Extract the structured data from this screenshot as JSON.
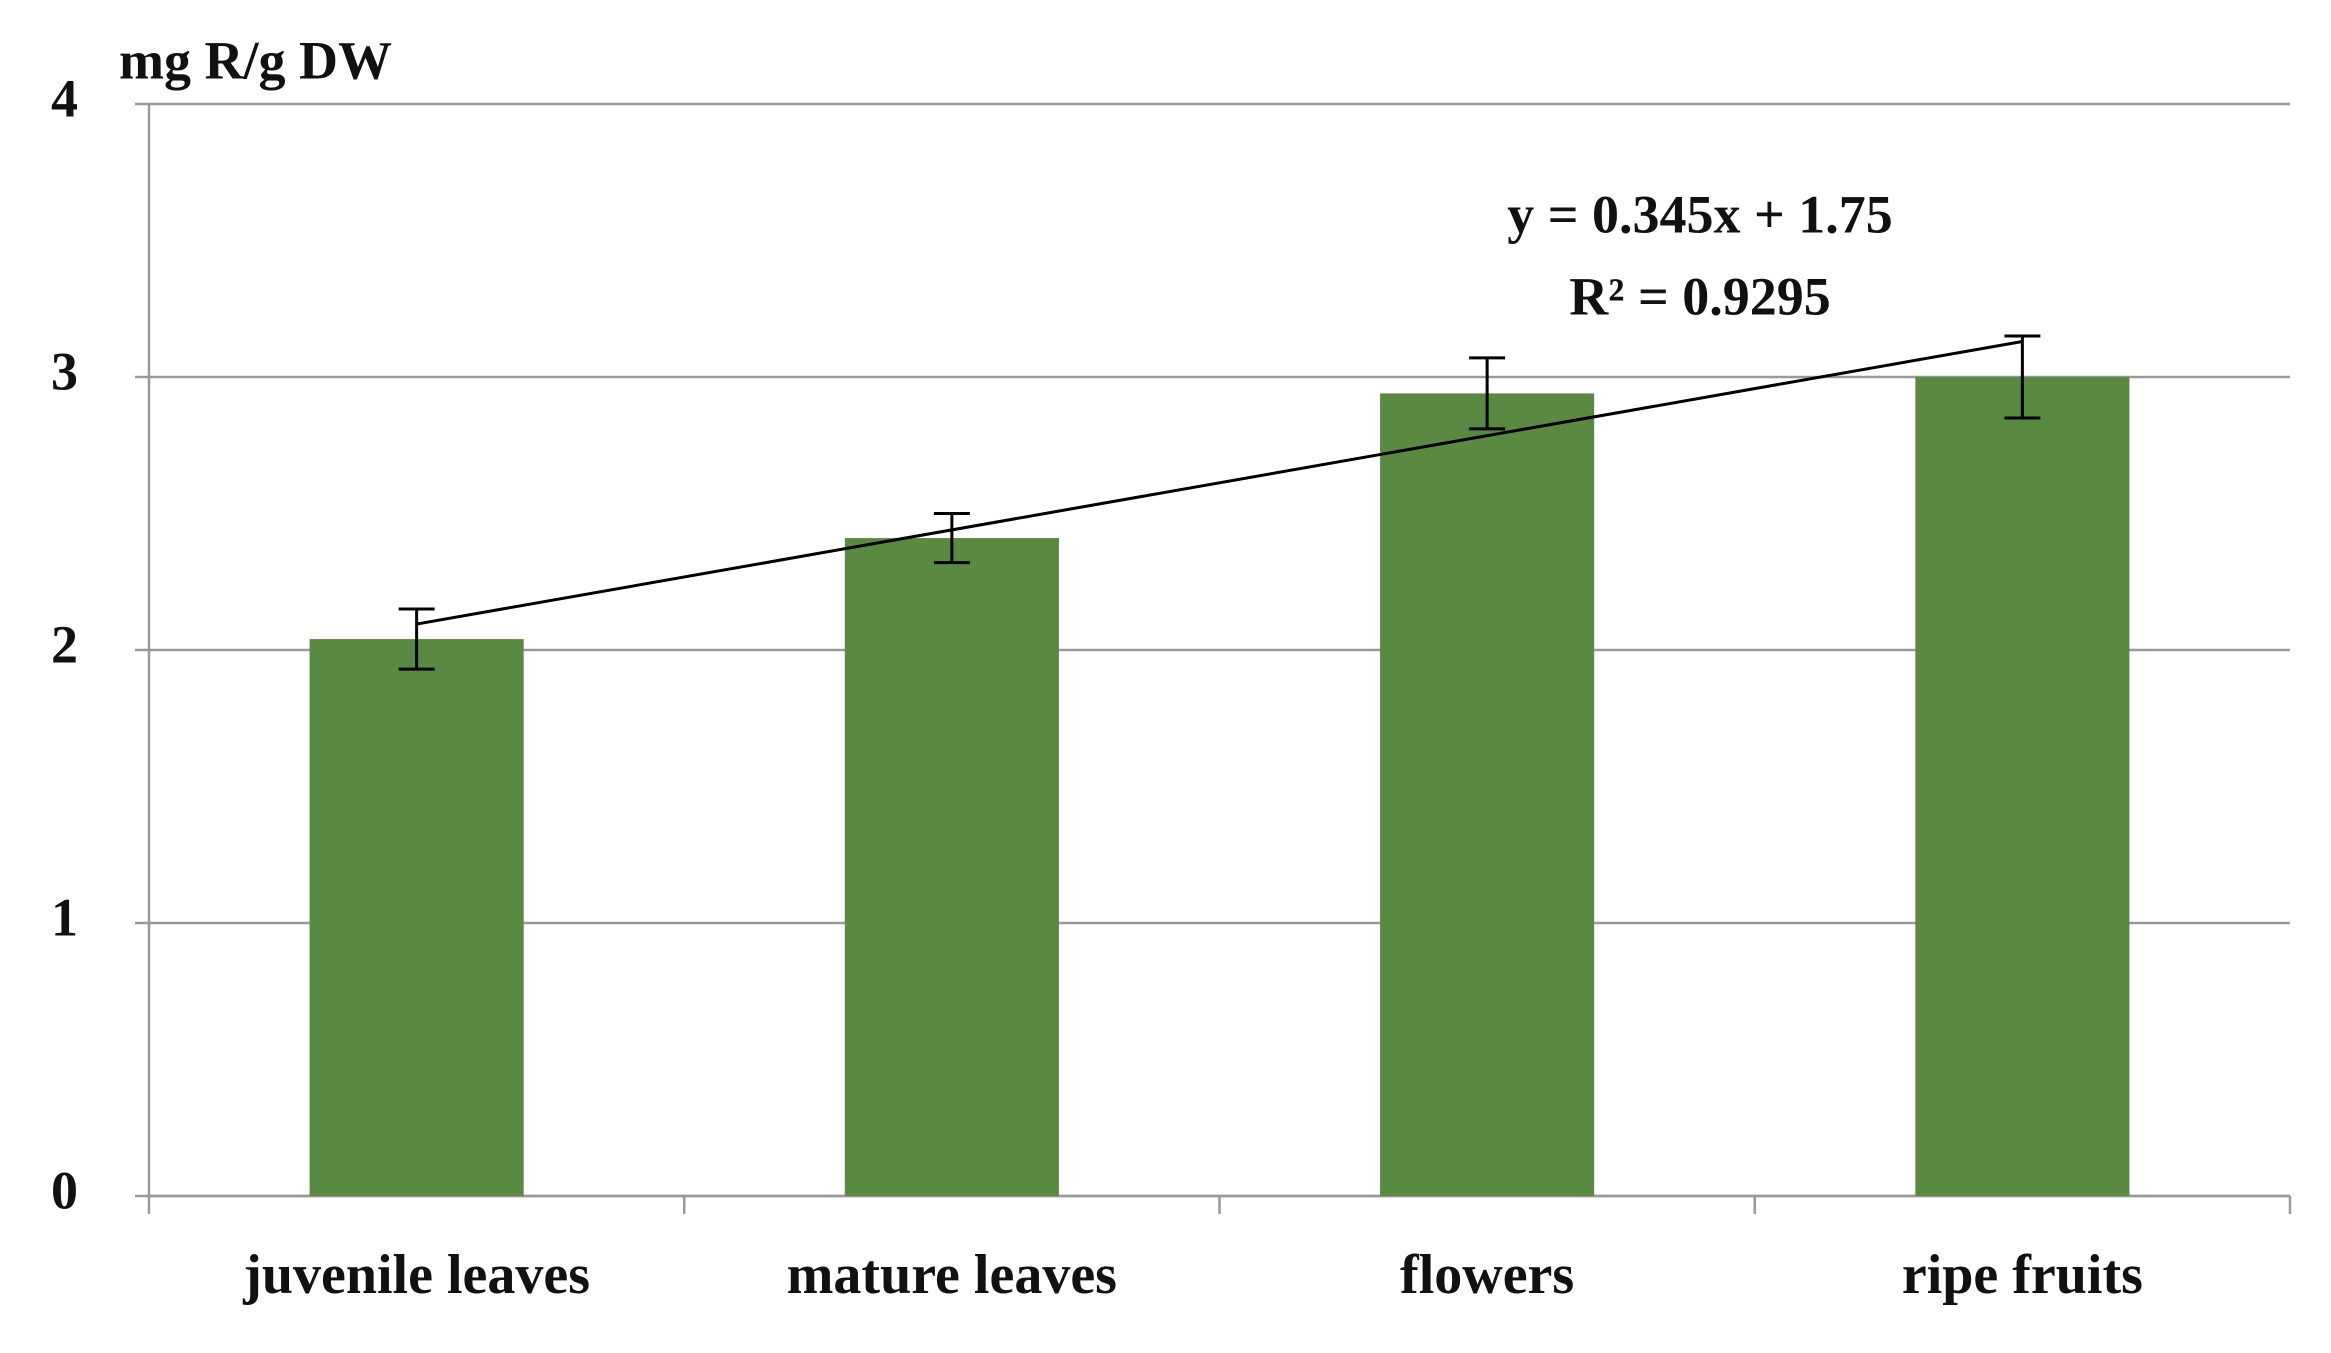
{
  "chart_data": {
    "type": "bar",
    "y_axis_label": "mg R/g DW",
    "categories": [
      "juvenile leaves",
      "mature leaves",
      "flowers",
      "ripe fruits"
    ],
    "values": [
      2.04,
      2.41,
      2.94,
      3.0
    ],
    "errors": [
      0.11,
      0.09,
      0.13,
      0.15
    ],
    "color": "#5a8a42",
    "ylim": [
      0,
      4
    ],
    "yticks": [
      0,
      1,
      2,
      3,
      4
    ],
    "grid": true,
    "trendline": {
      "slope": 0.345,
      "intercept": 1.75,
      "equation": "y = 0.345x + 1.75",
      "r_squared": "R² = 0.9295"
    }
  }
}
